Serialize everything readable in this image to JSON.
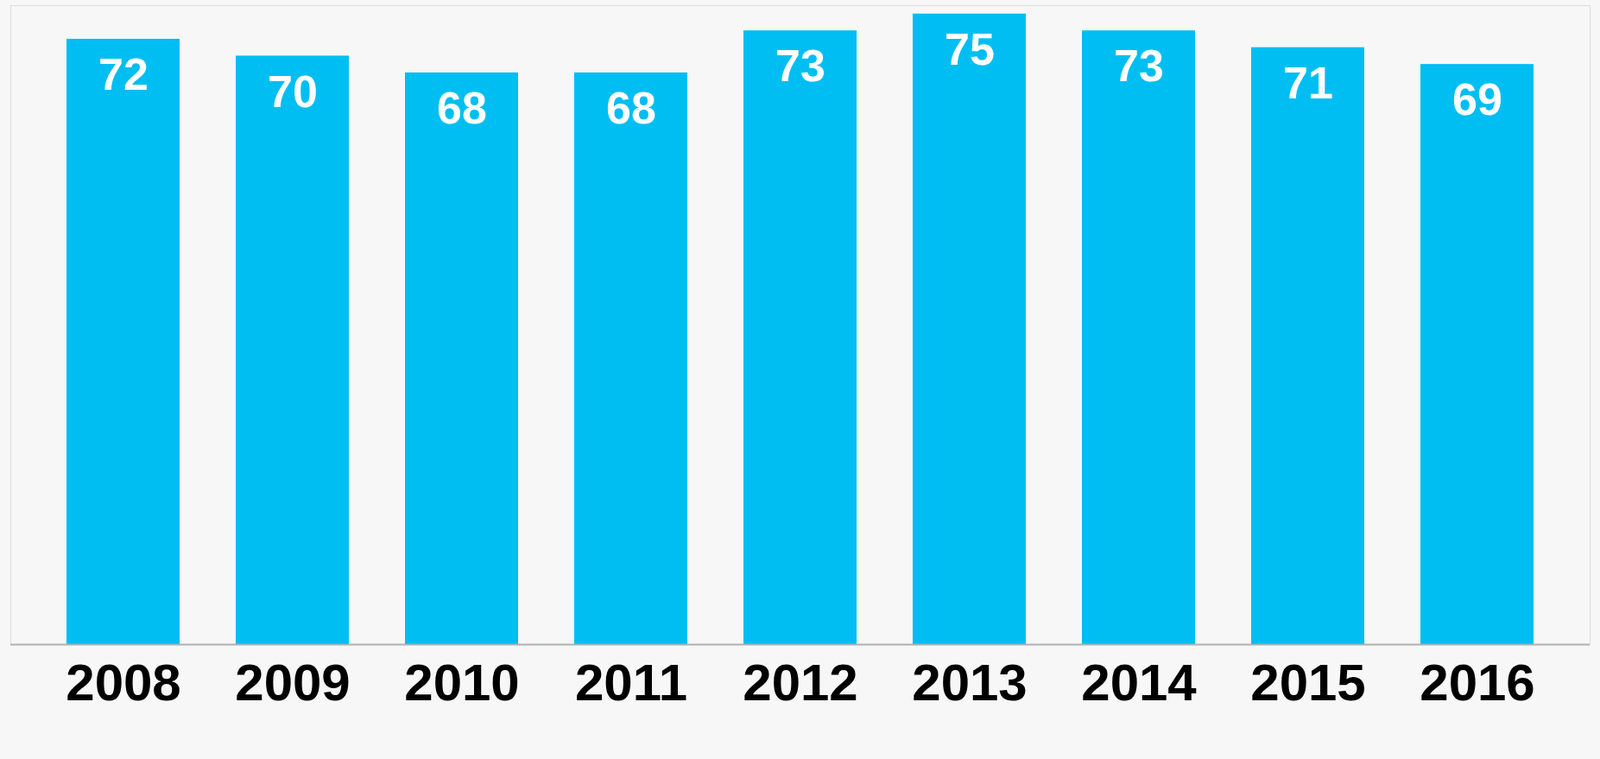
{
  "chart_data": {
    "type": "bar",
    "categories": [
      "2008",
      "2009",
      "2010",
      "2011",
      "2012",
      "2013",
      "2014",
      "2015",
      "2016"
    ],
    "values": [
      72,
      70,
      68,
      68,
      73,
      75,
      73,
      71,
      69
    ],
    "color": "#00bef2",
    "ylim": [
      0,
      76
    ],
    "yticks": [],
    "grid": false,
    "data_labels": true,
    "tick_labels": "x"
  }
}
